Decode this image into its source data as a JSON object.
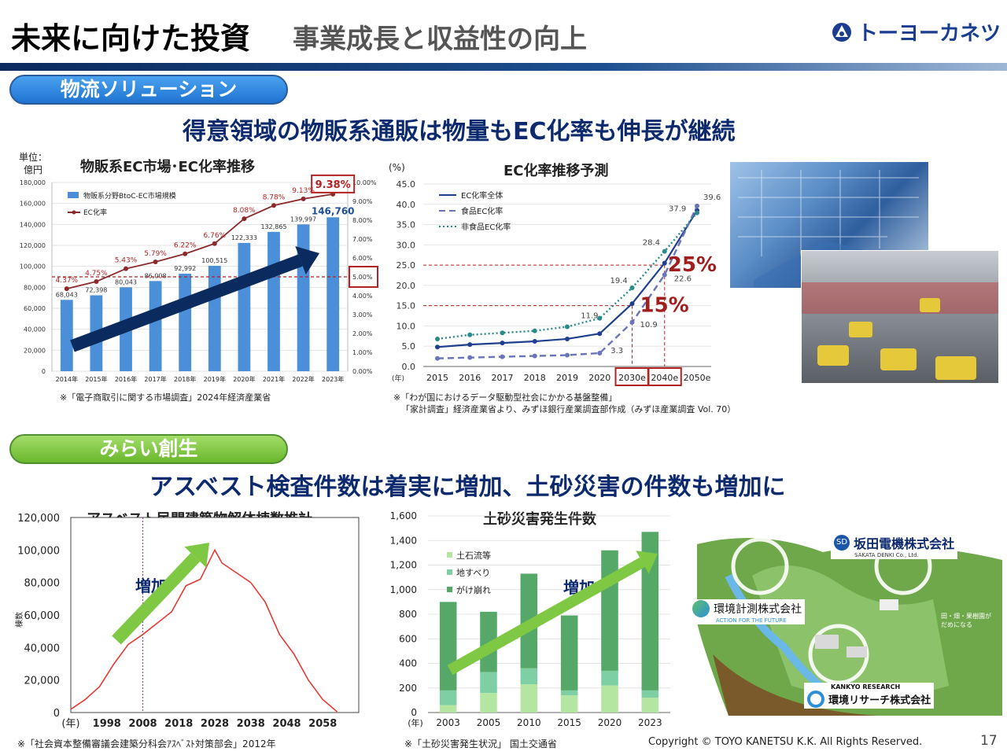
{
  "header": {
    "title": "未来に向けた投資",
    "subtitle": "事業成長と収益性の向上",
    "logo_text": "トーヨーカネツ"
  },
  "section1": {
    "pill": "物流ソリューション",
    "headline": "得意領域の物販系通販は物量もEC化率も伸長が継続"
  },
  "section2": {
    "pill": "みらい創生",
    "headline": "アスベスト検査件数は着実に増加、土砂災害の件数も増加に"
  },
  "chart_data": [
    {
      "type": "bar",
      "title": "物販系EC市場･EC化率推移",
      "unit_label": "単位：億円",
      "categories": [
        "2014年",
        "2015年",
        "2016年",
        "2017年",
        "2018年",
        "2019年",
        "2020年",
        "2021年",
        "2022年",
        "2023年"
      ],
      "series": [
        {
          "name": "物販系分野BtoC-EC市場規模",
          "values": [
            68043,
            72398,
            80043,
            86008,
            92992,
            100515,
            122333,
            132865,
            139997,
            146760
          ]
        },
        {
          "name": "EC化率",
          "values": [
            4.37,
            4.75,
            5.43,
            5.79,
            6.22,
            6.76,
            8.08,
            8.78,
            9.13,
            9.38
          ]
        }
      ],
      "value_labels": [
        "68,043",
        "72,398",
        "80,043",
        "86,008",
        "92,992",
        "100,515",
        "122,333",
        "132,865",
        "139,997",
        "146,760"
      ],
      "rate_labels": [
        "4.37%",
        "4.75%",
        "5.43%",
        "5.79%",
        "6.22%",
        "6.76%",
        "8.08%",
        "8.78%",
        "9.13%",
        "9.38%"
      ],
      "ylim": [
        0,
        180000
      ],
      "y2lim": [
        0,
        10
      ],
      "yticks": [
        "0",
        "20,000",
        "40,000",
        "60,000",
        "80,000",
        "100,000",
        "120,000",
        "140,000",
        "160,000",
        "180,000"
      ],
      "y2ticks": [
        "0.00%",
        "1.00%",
        "2.00%",
        "3.00%",
        "4.00%",
        "5.00%",
        "6.00%",
        "7.00%",
        "8.00%",
        "9.00%",
        "10.00%"
      ],
      "source": "※「電子商取引に関する市場調査」2024年経済産業省"
    },
    {
      "type": "line",
      "title": "EC化率推移予測",
      "unit_label": "(%)",
      "year_label": "(年)",
      "x": [
        "2015",
        "2016",
        "2017",
        "2018",
        "2019",
        "2020",
        "2030e",
        "2040e",
        "2050e"
      ],
      "series": [
        {
          "name": "EC化率全体",
          "values": [
            4.8,
            5.4,
            5.8,
            6.2,
            6.8,
            8.1,
            15.5,
            25.5,
            38.5
          ]
        },
        {
          "name": "食品EC化率",
          "values": [
            2.0,
            2.2,
            2.4,
            2.6,
            2.8,
            3.3,
            10.9,
            22.6,
            39.6
          ]
        },
        {
          "name": "非食品EC化率",
          "values": [
            6.8,
            7.8,
            8.3,
            8.8,
            9.8,
            11.9,
            19.4,
            28.4,
            37.9
          ]
        }
      ],
      "point_labels": [
        "3.3",
        "11.9",
        "10.9",
        "19.4",
        "22.6",
        "28.4",
        "37.9",
        "39.6"
      ],
      "callouts": [
        "25%",
        "15%"
      ],
      "ylim": [
        0,
        45
      ],
      "yticks": [
        "0.0",
        "5.0",
        "10.0",
        "15.0",
        "20.0",
        "25.0",
        "30.0",
        "35.0",
        "40.0",
        "45.0"
      ],
      "source_line1": "※「わが国におけるデータ駆動型社会にかかる基盤整備」",
      "source_line2": "「家計調査」経済産業省より、みずほ銀行産業調査部作成（みずほ産業調査 Vol. 70）"
    },
    {
      "type": "line",
      "title": "アスベスト民間建築物解体棟数推計",
      "ylabel": "棟数",
      "year_label": "(年)",
      "xticks": [
        "1998",
        "2008",
        "2018",
        "2028",
        "2038",
        "2048",
        "2058"
      ],
      "x": [
        1988,
        1992,
        1996,
        2000,
        2004,
        2008,
        2012,
        2016,
        2020,
        2024,
        2028,
        2030,
        2034,
        2038,
        2042,
        2046,
        2050,
        2054,
        2058,
        2062
      ],
      "values": [
        2000,
        8000,
        16000,
        30000,
        42000,
        48000,
        55000,
        62000,
        78000,
        82000,
        100000,
        92000,
        86000,
        80000,
        68000,
        48000,
        36000,
        20000,
        8000,
        500
      ],
      "ylim": [
        0,
        120000
      ],
      "yticks": [
        "0",
        "20,000",
        "40,000",
        "60,000",
        "80,000",
        "100,000",
        "120,000"
      ],
      "arrow_label": "増加",
      "source": "※「社会資本整備審議会建築分科会ｱｽﾍﾞｽﾄ対策部会」2012年"
    },
    {
      "type": "bar",
      "stacked": true,
      "title": "土砂災害発生件数",
      "year_label": "(年)",
      "categories": [
        "2003",
        "2005",
        "2010",
        "2015",
        "2020",
        "2023"
      ],
      "series": [
        {
          "name": "土石流等",
          "values": [
            60,
            160,
            230,
            140,
            220,
            120
          ]
        },
        {
          "name": "地すべり",
          "values": [
            120,
            170,
            130,
            40,
            120,
            60
          ]
        },
        {
          "name": "がけ崩れ",
          "values": [
            720,
            490,
            770,
            610,
            980,
            1290
          ]
        }
      ],
      "ylim": [
        0,
        1600
      ],
      "yticks": [
        "0",
        "200",
        "400",
        "600",
        "800",
        "1,000",
        "1,200",
        "1,400",
        "1,600"
      ],
      "arrow_label": "増加",
      "source": "※「土砂災害発生状況」 国土交通省"
    }
  ],
  "illustration": {
    "company1": "坂田電機株式会社",
    "company1_en": "SAKATA DENKI Co., Ltd.",
    "company2": "環境計測株式会社",
    "company2_en": "ACTION FOR THE FUTURE",
    "company3": "環境リサーチ株式会社",
    "company3_en": "KANKYO RESEARCH",
    "note": "田・畑・果樹園が だめになる"
  },
  "footer": {
    "copyright": "Copyright ©  TOYO KANETSU K.K. All Rights Reserved.",
    "page": "17"
  },
  "colors": {
    "navy": "#0d2a6e",
    "bar_blue": "#4a8fd8",
    "rate_red": "#8b2a2a",
    "green_dark": "#55a868",
    "green_mid": "#7fcfa5",
    "green_light": "#b5e6a1"
  }
}
